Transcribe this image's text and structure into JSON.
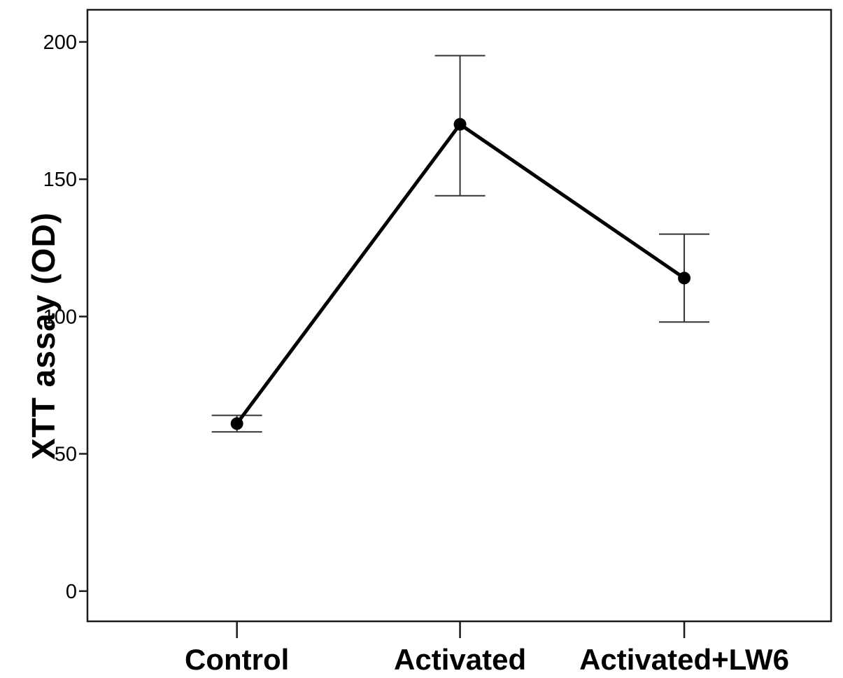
{
  "chart_data": {
    "type": "line",
    "title": "",
    "xlabel": "",
    "ylabel": "XTT assay (OD)",
    "categories": [
      "Control",
      "Activated",
      "Activated+LW6"
    ],
    "series": [
      {
        "name": "XTT assay (OD)",
        "values": [
          61,
          170,
          114
        ],
        "error_low": [
          58,
          144,
          98
        ],
        "error_high": [
          64,
          195,
          130
        ]
      }
    ],
    "y_ticks": [
      0,
      50,
      100,
      150,
      200
    ],
    "ylim": [
      -11,
      211.7
    ],
    "grid": false,
    "legend": false,
    "marker": "circle",
    "error_bars": true,
    "colors": {
      "line": "#000000",
      "marker": "#000000",
      "error_bar": "#333333",
      "axis": "#1a1a1a",
      "text": "#000000",
      "background": "#ffffff"
    }
  }
}
